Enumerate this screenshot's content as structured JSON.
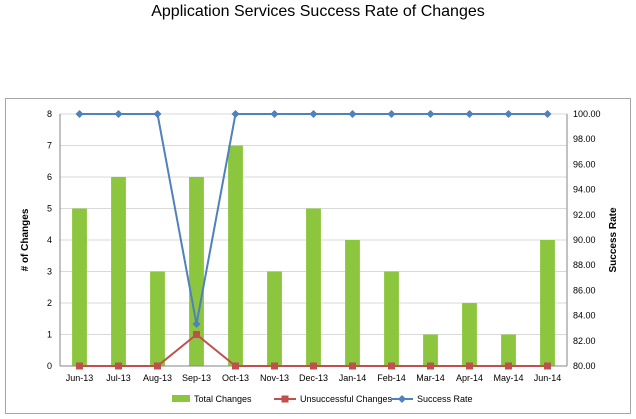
{
  "chart_title": "Application Services Success Rate of Changes",
  "colors": {
    "total_changes": "#8cc63f",
    "unsuccessful": "#c0504d",
    "success_rate": "#4f81bd",
    "grid": "#d9d9d9",
    "axis": "#868686"
  },
  "chart_data": {
    "type": "bar",
    "title": "Application Services Success Rate of Changes",
    "categories": [
      "Jun-13",
      "Jul-13",
      "Aug-13",
      "Sep-13",
      "Oct-13",
      "Nov-13",
      "Dec-13",
      "Jan-14",
      "Feb-14",
      "Mar-14",
      "Apr-14",
      "May-14",
      "Jun-14"
    ],
    "ylabel": "# of Changes",
    "y2label": "Success Rate",
    "ylim": [
      0,
      8
    ],
    "y2lim": [
      80,
      100
    ],
    "yticks": [
      "0",
      "1",
      "2",
      "3",
      "4",
      "5",
      "6",
      "7",
      "8"
    ],
    "y2ticks": [
      "80.00",
      "82.00",
      "84.00",
      "86.00",
      "88.00",
      "90.00",
      "92.00",
      "94.00",
      "96.00",
      "98.00",
      "100.00"
    ],
    "grid": true,
    "legend_position": "bottom",
    "series": [
      {
        "name": "Total Changes",
        "type": "bar",
        "axis": "left",
        "values": [
          5,
          6,
          3,
          6,
          7,
          3,
          5,
          4,
          3,
          1,
          2,
          1,
          4
        ]
      },
      {
        "name": "Unsuccessful Changes",
        "type": "line",
        "axis": "left",
        "values": [
          0,
          0,
          0,
          1,
          0,
          0,
          0,
          0,
          0,
          0,
          0,
          0,
          0
        ]
      },
      {
        "name": "Success Rate",
        "type": "line",
        "axis": "right",
        "values": [
          100,
          100,
          100,
          83.33,
          100,
          100,
          100,
          100,
          100,
          100,
          100,
          100,
          100
        ]
      }
    ]
  }
}
